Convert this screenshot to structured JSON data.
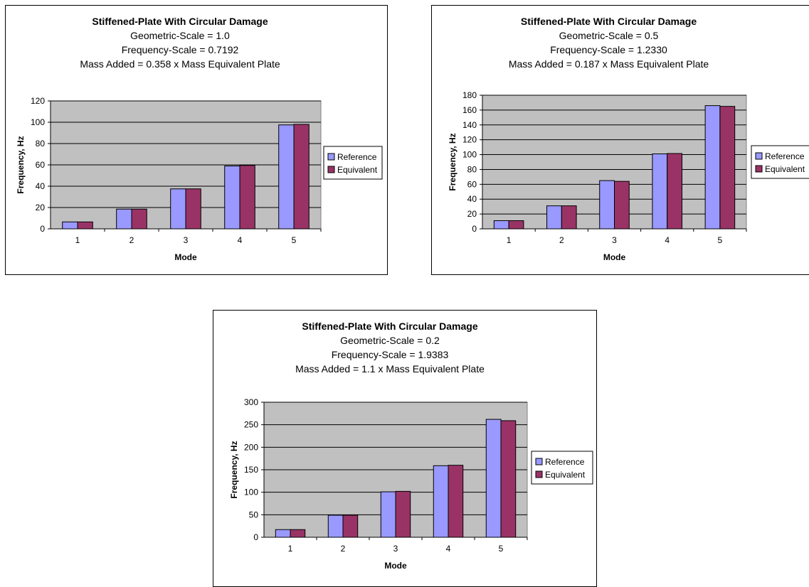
{
  "colors": {
    "plot_bg": "#c0c0c0",
    "reference": "#9999ff",
    "equivalent": "#993366",
    "grid": "#000000"
  },
  "chart_data": [
    {
      "type": "bar",
      "title": "Stiffened-Plate With Circular Damage",
      "subtitle_lines": [
        "Geometric-Scale = 1.0",
        "Frequency-Scale = 0.7192",
        "Mass Added = 0.358 x Mass Equivalent Plate"
      ],
      "xlabel": "Mode",
      "ylabel": "Frequency, Hz",
      "categories": [
        "1",
        "2",
        "3",
        "4",
        "5"
      ],
      "series": [
        {
          "name": "Reference",
          "values": [
            6.5,
            18.5,
            37.5,
            59,
            97.5
          ]
        },
        {
          "name": "Equivalent",
          "values": [
            6.5,
            18.5,
            37.5,
            59.5,
            98
          ]
        }
      ],
      "ylim": [
        0,
        120
      ],
      "yticks": [
        "0",
        "20",
        "40",
        "60",
        "80",
        "100",
        "120"
      ],
      "grid": true,
      "legend_position": "right"
    },
    {
      "type": "bar",
      "title": "Stiffened-Plate With Circular Damage",
      "subtitle_lines": [
        "Geometric-Scale = 0.5",
        "Frequency-Scale = 1.2330",
        "Mass Added = 0.187 x Mass Equivalent Plate"
      ],
      "xlabel": "Mode",
      "ylabel": "Frequency, Hz",
      "categories": [
        "1",
        "2",
        "3",
        "4",
        "5"
      ],
      "series": [
        {
          "name": "Reference",
          "values": [
            11,
            31,
            65,
            101,
            166
          ]
        },
        {
          "name": "Equivalent",
          "values": [
            11,
            31,
            64,
            101.5,
            165
          ]
        }
      ],
      "ylim": [
        0,
        180
      ],
      "yticks": [
        "0",
        "20",
        "40",
        "60",
        "80",
        "100",
        "120",
        "140",
        "160",
        "180"
      ],
      "grid": true,
      "legend_position": "right"
    },
    {
      "type": "bar",
      "title": "Stiffened-Plate With Circular Damage",
      "subtitle_lines": [
        "Geometric-Scale = 0.2",
        "Frequency-Scale = 1.9383",
        "Mass Added = 1.1 x Mass Equivalent Plate"
      ],
      "xlabel": "Mode",
      "ylabel": "Frequency, Hz",
      "categories": [
        "1",
        "2",
        "3",
        "4",
        "5"
      ],
      "series": [
        {
          "name": "Reference",
          "values": [
            17,
            49,
            101,
            159,
            262
          ]
        },
        {
          "name": "Equivalent",
          "values": [
            17,
            49,
            102,
            160,
            259
          ]
        }
      ],
      "ylim": [
        0,
        300
      ],
      "yticks": [
        "0",
        "50",
        "100",
        "150",
        "200",
        "250",
        "300"
      ],
      "grid": true,
      "legend_position": "right"
    }
  ]
}
